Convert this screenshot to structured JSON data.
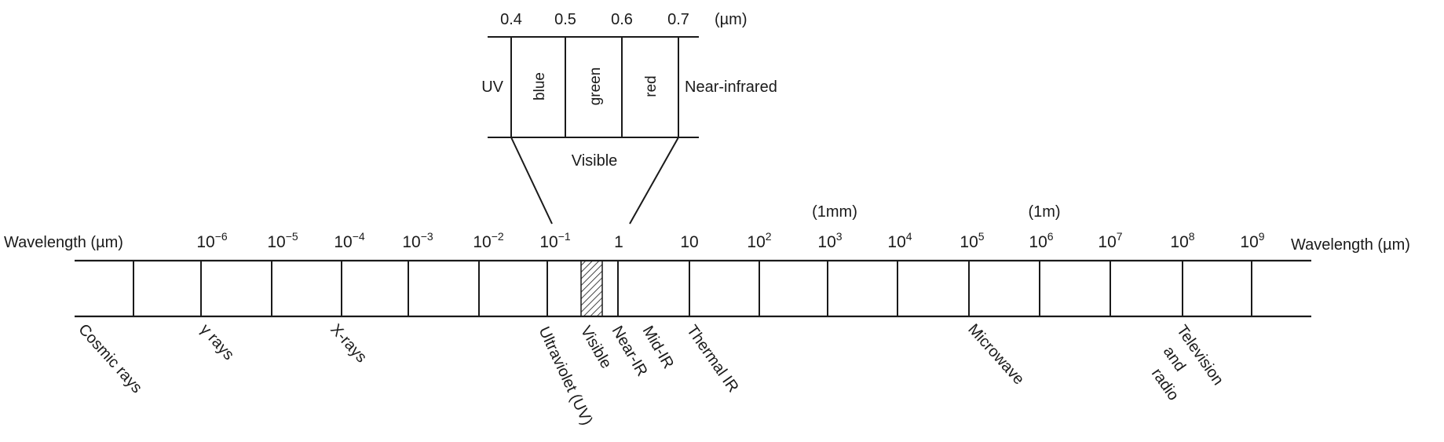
{
  "spectrum": {
    "axis_label_left": "Wavelength (µm)",
    "axis_label_right": "Wavelength (µm)",
    "ticks": [
      {
        "base": "10",
        "exp": "−6"
      },
      {
        "base": "10",
        "exp": "−5"
      },
      {
        "base": "10",
        "exp": "−4"
      },
      {
        "base": "10",
        "exp": "−3"
      },
      {
        "base": "10",
        "exp": "−2"
      },
      {
        "base": "10",
        "exp": "−1"
      },
      {
        "base": "1",
        "exp": ""
      },
      {
        "base": "10",
        "exp": ""
      },
      {
        "base": "10",
        "exp": "2"
      },
      {
        "base": "10",
        "exp": "3"
      },
      {
        "base": "10",
        "exp": "4"
      },
      {
        "base": "10",
        "exp": "5"
      },
      {
        "base": "10",
        "exp": "6"
      },
      {
        "base": "10",
        "exp": "7"
      },
      {
        "base": "10",
        "exp": "8"
      },
      {
        "base": "10",
        "exp": "9"
      }
    ],
    "unit_notes": {
      "mm": "(1mm)",
      "m": "(1m)"
    },
    "regions": {
      "cosmic": "Cosmic rays",
      "gamma": "γ rays",
      "xrays": "X-rays",
      "uv": "Ultraviolet (UV)",
      "visible": "Visible",
      "near_ir": "Near-IR",
      "mid_ir": "Mid-IR",
      "thermal_ir": "Thermal IR",
      "microwave": "Microwave",
      "tv_radio": [
        "Television",
        "and",
        "radio"
      ]
    }
  },
  "inset": {
    "ticks": [
      "0.4",
      "0.5",
      "0.6",
      "0.7"
    ],
    "unit": "(µm)",
    "left_label": "UV",
    "right_label": "Near-infrared",
    "bands": [
      "blue",
      "green",
      "red"
    ],
    "caption": "Visible"
  }
}
